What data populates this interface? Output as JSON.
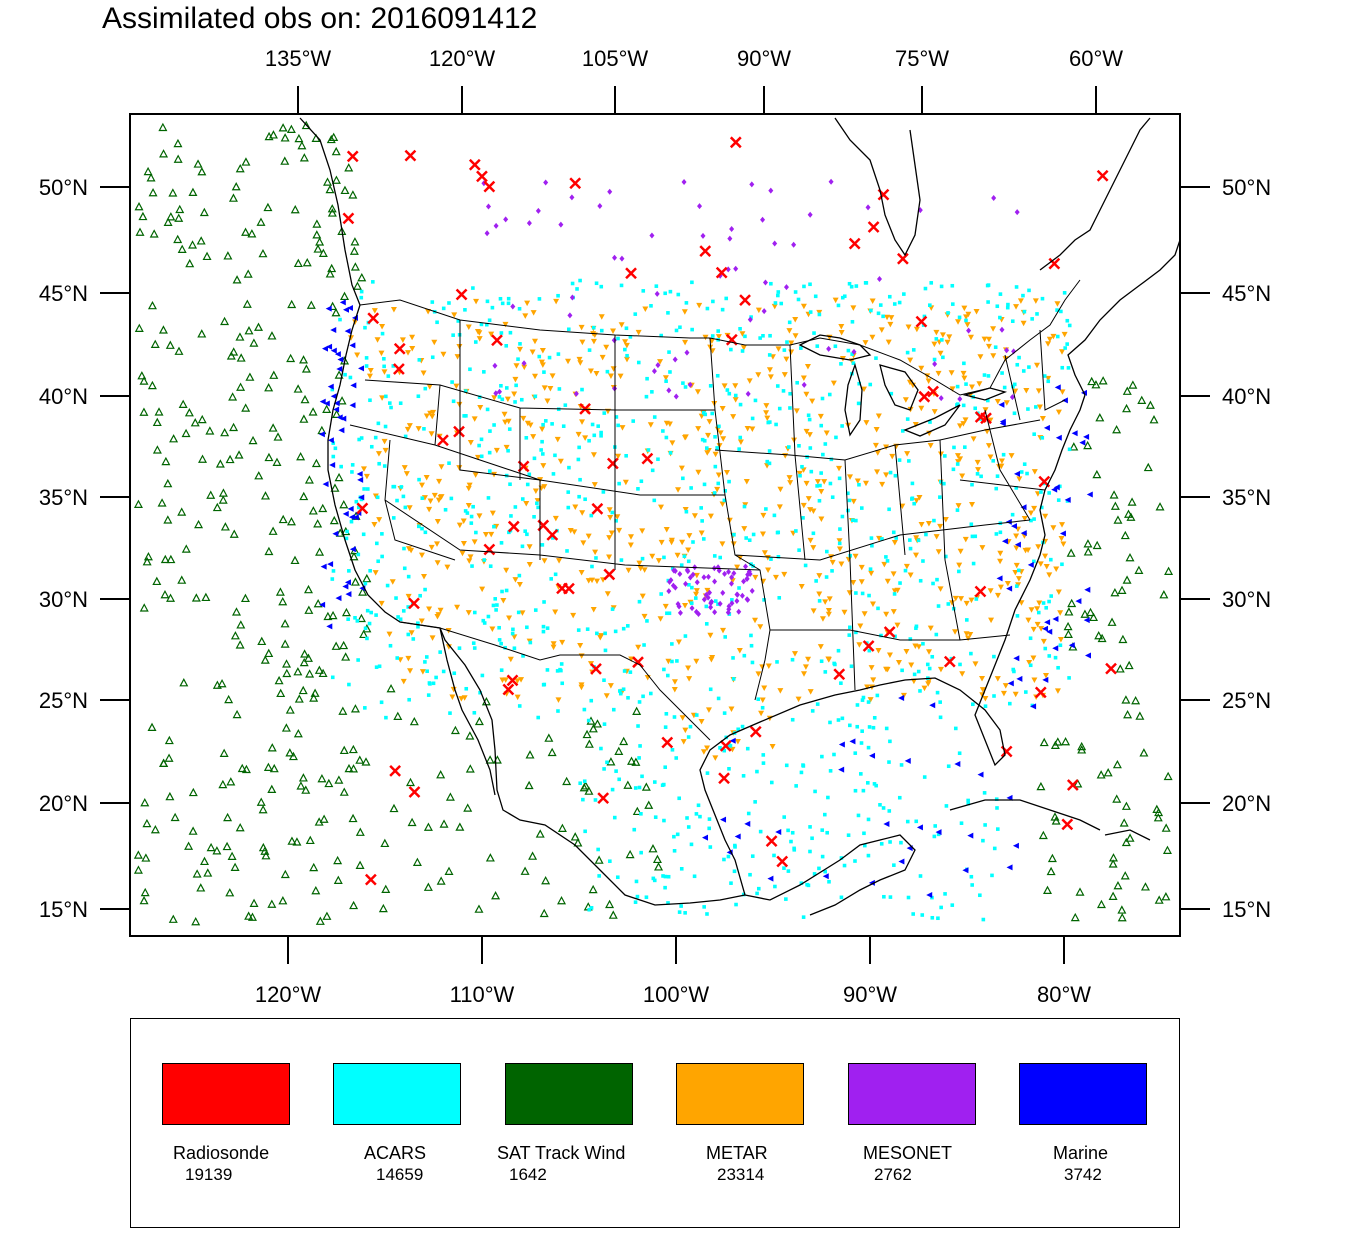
{
  "title": "Assimilated obs on: 2016091412",
  "axes": {
    "top_ticks": [
      "135°W",
      "120°W",
      "105°W",
      "90°W",
      "75°W",
      "60°W"
    ],
    "bottom_ticks": [
      "120°W",
      "110°W",
      "100°W",
      "90°W",
      "80°W"
    ],
    "left_ticks": [
      "50°N",
      "45°N",
      "40°N",
      "35°N",
      "30°N",
      "25°N",
      "20°N",
      "15°N"
    ],
    "right_ticks": [
      "50°N",
      "45°N",
      "40°N",
      "35°N",
      "30°N",
      "25°N",
      "20°N",
      "15°N"
    ]
  },
  "legend": [
    {
      "label": "Radiosonde",
      "count": "19139",
      "color": "#ff0000"
    },
    {
      "label": "ACARS",
      "count": "14659",
      "color": "#00ffff"
    },
    {
      "label": "SAT Track Wind",
      "count": "1642",
      "color": "#006400"
    },
    {
      "label": "METAR",
      "count": "23314",
      "color": "#ffa500"
    },
    {
      "label": "MESONET",
      "count": "2762",
      "color": "#a020f0"
    },
    {
      "label": "Marine",
      "count": "3742",
      "color": "#0000ff"
    }
  ]
}
